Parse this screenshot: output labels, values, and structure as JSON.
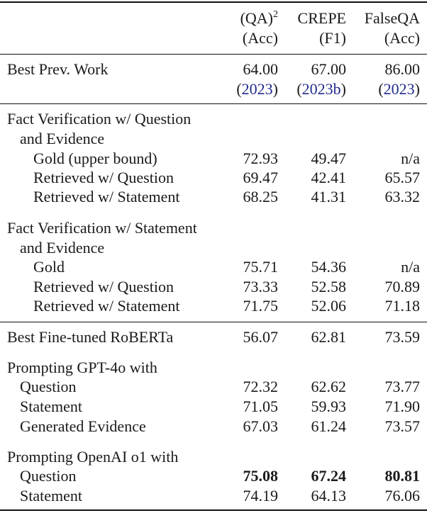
{
  "header": {
    "col1_line1": "(QA)",
    "col1_sup": "2",
    "col1_line2": "(Acc)",
    "col2_line1": "CREPE",
    "col2_line2": "(F1)",
    "col3_line1": "FalseQA",
    "col3_line2": "(Acc)"
  },
  "best_prev": {
    "label": "Best Prev. Work",
    "values": [
      "64.00",
      "67.00",
      "86.00"
    ],
    "cite_open": [
      "(",
      "(",
      "("
    ],
    "cites": [
      "2023",
      "2023b",
      "2023"
    ],
    "cite_close": [
      ")",
      ")",
      ")"
    ]
  },
  "fv_question": {
    "title_line1": "Fact Verification w/ Question",
    "title_line2": "and Evidence",
    "rows": [
      {
        "label": "Gold (upper bound)",
        "values": [
          "72.93",
          "49.47",
          "n/a"
        ]
      },
      {
        "label": "Retrieved w/ Question",
        "values": [
          "69.47",
          "42.41",
          "65.57"
        ]
      },
      {
        "label": "Retrieved w/ Statement",
        "values": [
          "68.25",
          "41.31",
          "63.32"
        ]
      }
    ]
  },
  "fv_statement": {
    "title_line1": "Fact Verification w/ Statement",
    "title_line2": "and Evidence",
    "rows": [
      {
        "label": "Gold",
        "values": [
          "75.71",
          "54.36",
          "n/a"
        ]
      },
      {
        "label": "Retrieved w/ Question",
        "values": [
          "73.33",
          "52.58",
          "70.89"
        ]
      },
      {
        "label": "Retrieved w/ Statement",
        "values": [
          "71.75",
          "52.06",
          "71.18"
        ]
      }
    ]
  },
  "roberta": {
    "label": "Best Fine-tuned RoBERTa",
    "values": [
      "56.07",
      "62.81",
      "73.59"
    ]
  },
  "gpt4o": {
    "title": "Prompting GPT-4o with",
    "rows": [
      {
        "label": "Question",
        "values": [
          "72.32",
          "62.62",
          "73.77"
        ]
      },
      {
        "label": "Statement",
        "values": [
          "71.05",
          "59.93",
          "71.90"
        ]
      },
      {
        "label": "Generated Evidence",
        "values": [
          "67.03",
          "61.24",
          "73.57"
        ]
      }
    ]
  },
  "o1": {
    "title": "Prompting OpenAI o1 with",
    "rows": [
      {
        "label": "Question",
        "values": [
          "75.08",
          "67.24",
          "80.81"
        ]
      },
      {
        "label": "Statement",
        "values": [
          "74.19",
          "64.13",
          "76.06"
        ]
      }
    ]
  }
}
